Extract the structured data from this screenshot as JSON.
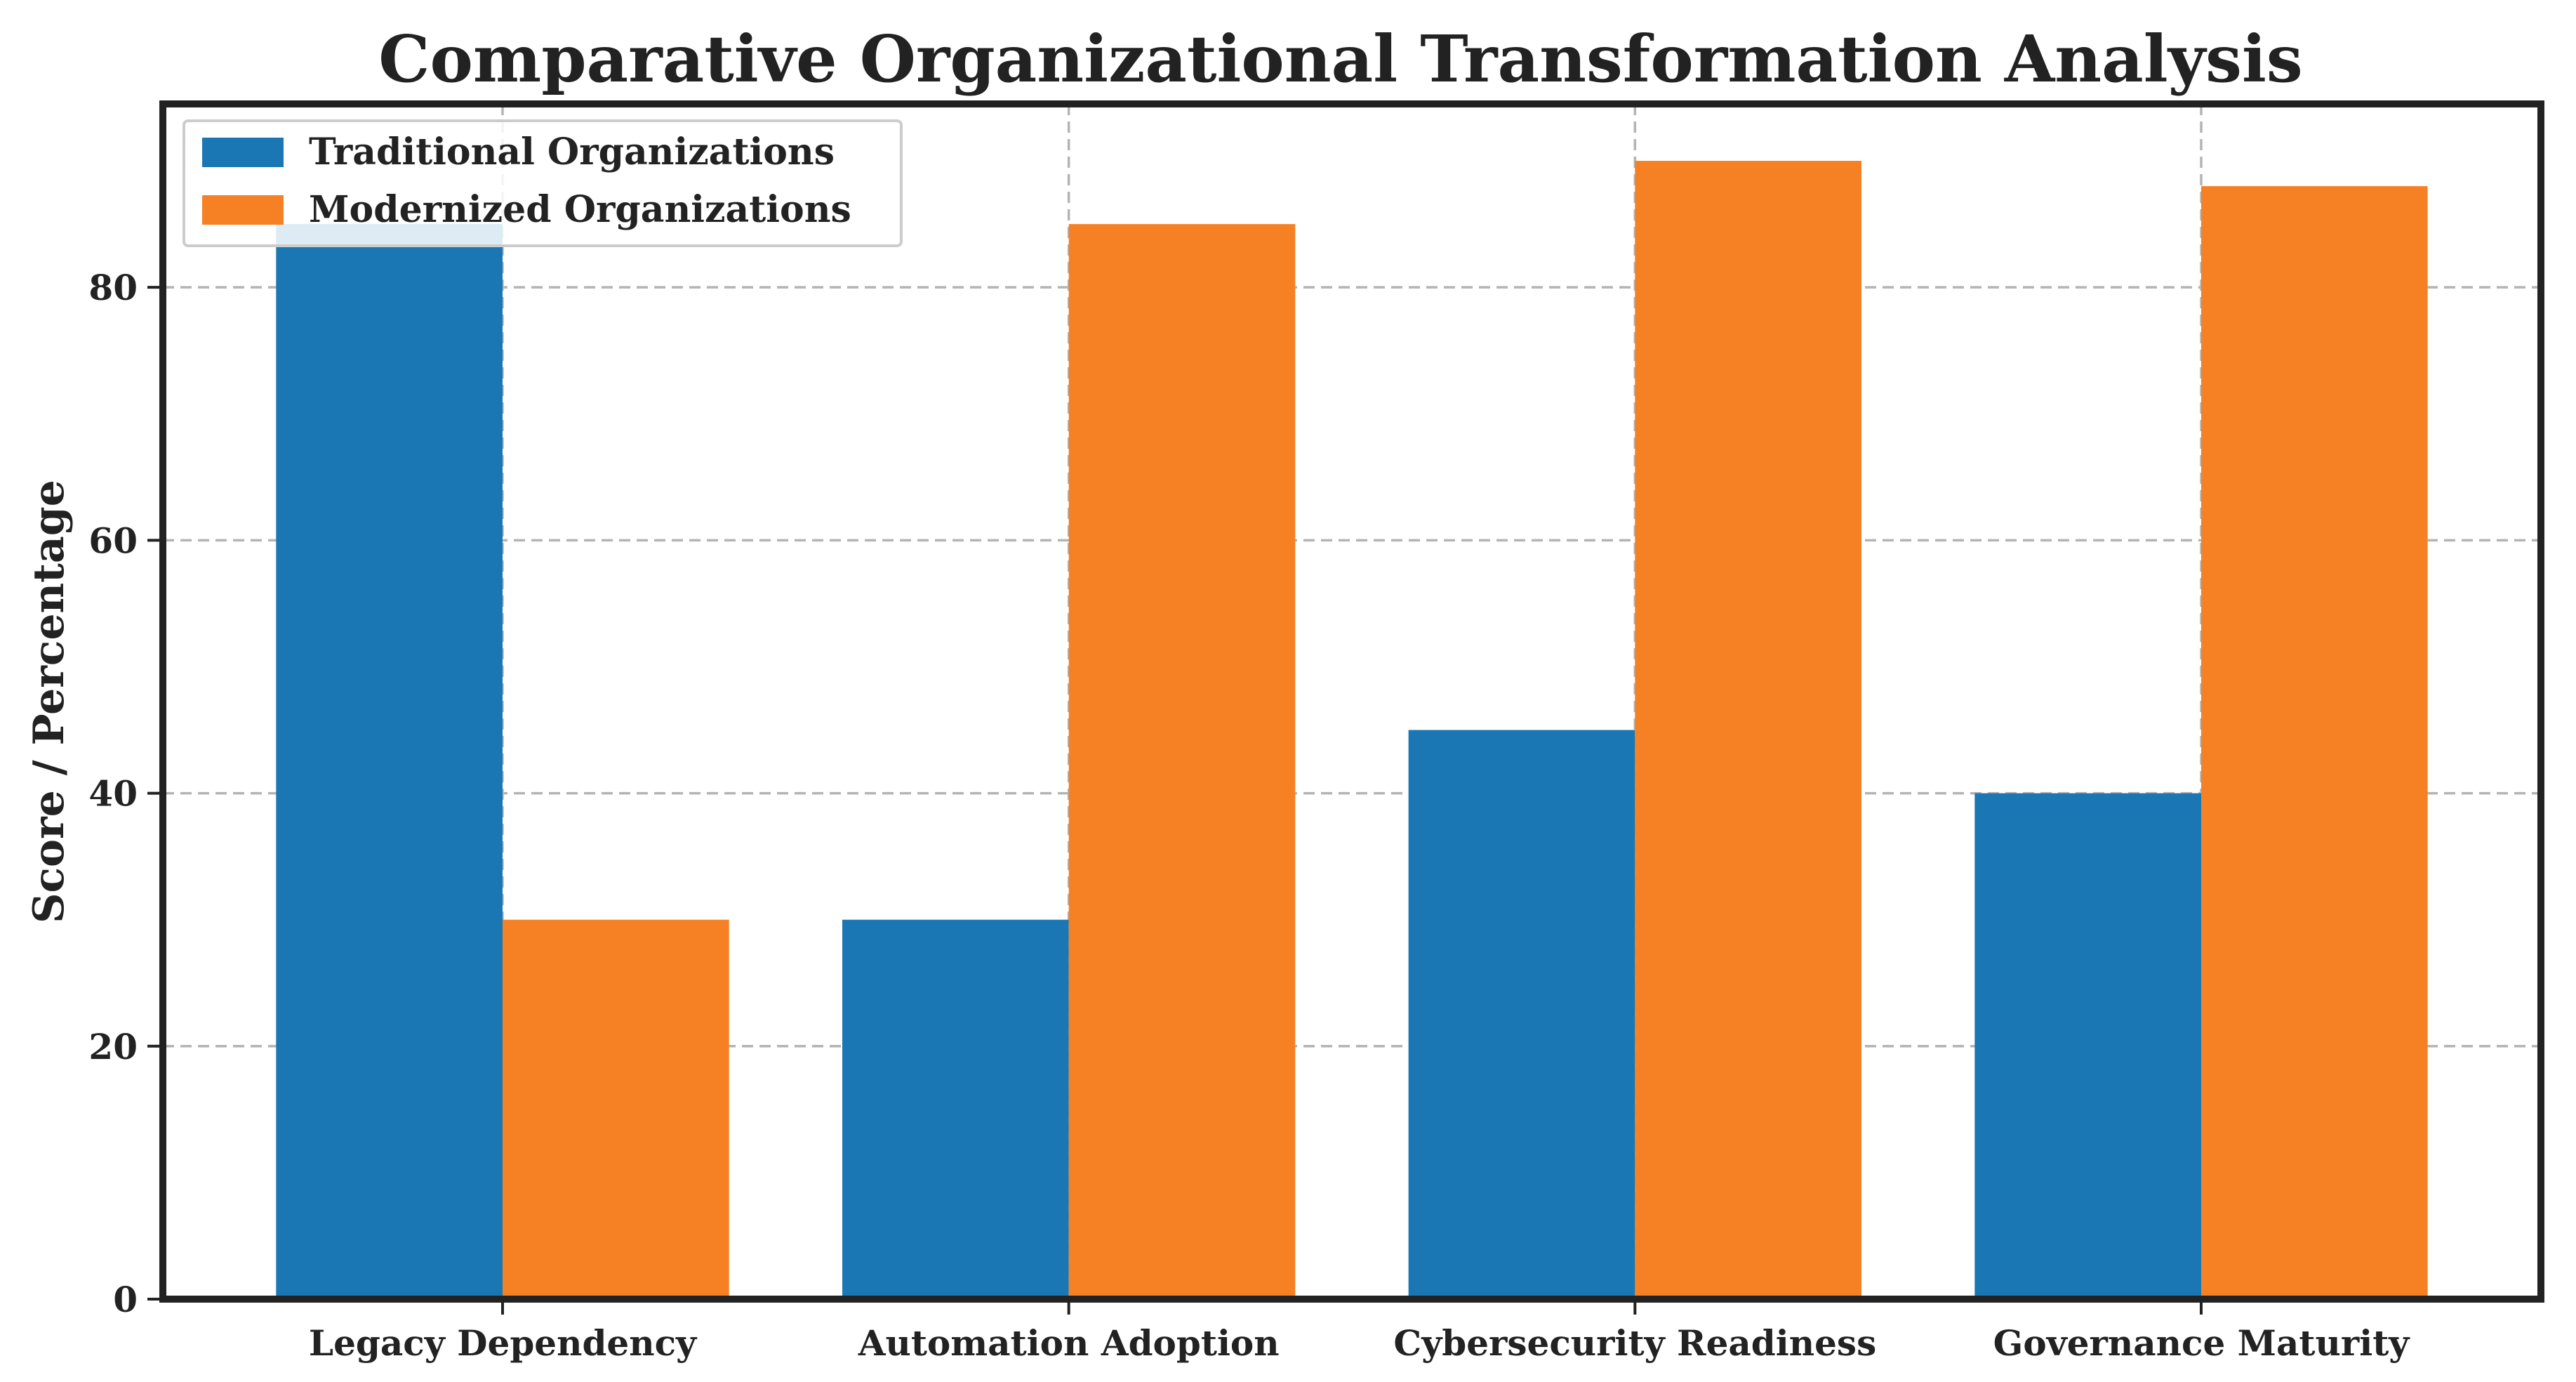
{
  "chart_data": {
    "type": "bar",
    "title": "Comparative Organizational Transformation Analysis",
    "xlabel": "",
    "ylabel": "Score / Percentage",
    "categories": [
      "Legacy Dependency",
      "Automation Adoption",
      "Cybersecurity Readiness",
      "Governance Maturity"
    ],
    "series": [
      {
        "name": "Traditional Organizations",
        "values": [
          85,
          30,
          45,
          40
        ],
        "color": "#1a77b4"
      },
      {
        "name": "Modernized Organizations",
        "values": [
          30,
          85,
          90,
          88
        ],
        "color": "#f58124"
      }
    ],
    "ylim": [
      0,
      94.5
    ],
    "yticks": [
      0,
      20,
      40,
      60,
      80
    ],
    "grid": true,
    "grid_style": "dashed",
    "legend_position": "top-left"
  }
}
